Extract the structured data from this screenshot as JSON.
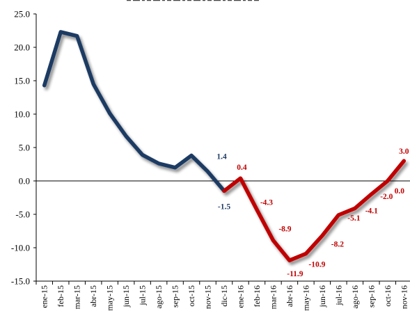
{
  "chart_data": {
    "type": "line",
    "title": "",
    "xlabel": "",
    "ylabel": "",
    "ylim": [
      -15,
      25
    ],
    "y_ticks": [
      "25.0",
      "20.0",
      "15.0",
      "10.0",
      "5.0",
      "0.0",
      "-5.0",
      "-10.0",
      "-15.0"
    ],
    "categories": [
      "ene-15",
      "feb-15",
      "mar-15",
      "abr-15",
      "may-15",
      "jun-15",
      "jul-15",
      "ago-15",
      "sep-15",
      "oct-15",
      "nov-15",
      "dic-15",
      "ene-16",
      "feb-16",
      "mar-16",
      "abr-16",
      "may-16",
      "jun-16",
      "jul-16",
      "ago-16",
      "sep-16",
      "oct-16",
      "nov-16"
    ],
    "grid": false,
    "series": [
      {
        "color": "#1f3b63",
        "values": [
          14.3,
          22.3,
          21.7,
          14.5,
          10.1,
          6.7,
          3.9,
          2.6,
          2.0,
          3.8,
          1.4,
          -1.5,
          null,
          null,
          null,
          null,
          null,
          null,
          null,
          null,
          null,
          null,
          null
        ]
      },
      {
        "color": "#c00000",
        "values": [
          null,
          null,
          null,
          null,
          null,
          null,
          null,
          null,
          null,
          null,
          null,
          -1.5,
          0.4,
          -4.3,
          -8.9,
          -11.9,
          -10.9,
          -8.2,
          -5.1,
          -4.1,
          -2.0,
          0.0,
          3.0
        ]
      }
    ],
    "data_labels": [
      {
        "index": 10,
        "text": "1.4",
        "color": "#1f3b63"
      },
      {
        "index": 11,
        "text": "-1.5",
        "color": "#1f3b63"
      },
      {
        "index": 12,
        "text": "0.4",
        "color": "#c00000"
      },
      {
        "index": 13,
        "text": "-4.3",
        "color": "#c00000"
      },
      {
        "index": 14,
        "text": "-8.9",
        "color": "#c00000"
      },
      {
        "index": 15,
        "text": "-11.9",
        "color": "#c00000"
      },
      {
        "index": 16,
        "text": "-10.9",
        "color": "#c00000"
      },
      {
        "index": 17,
        "text": "-8.2",
        "color": "#c00000"
      },
      {
        "index": 18,
        "text": "-5.1",
        "color": "#c00000"
      },
      {
        "index": 19,
        "text": "-4.1",
        "color": "#c00000"
      },
      {
        "index": 20,
        "text": "-2.0",
        "color": "#c00000"
      },
      {
        "index": 21,
        "text": "0.0",
        "color": "#c00000"
      },
      {
        "index": 22,
        "text": "3.0",
        "color": "#c00000"
      }
    ]
  }
}
